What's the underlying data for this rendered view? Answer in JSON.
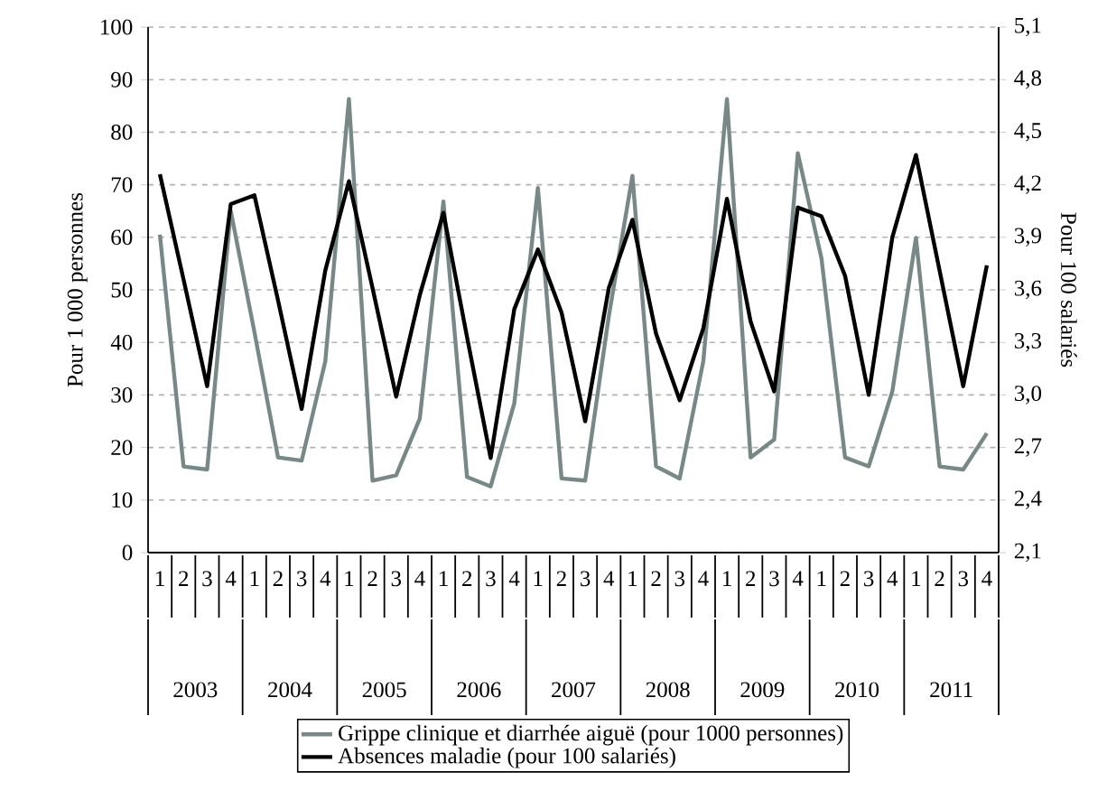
{
  "chart_data": {
    "type": "line",
    "categories": [
      "1",
      "2",
      "3",
      "4",
      "1",
      "2",
      "3",
      "4",
      "1",
      "2",
      "3",
      "4",
      "1",
      "2",
      "3",
      "4",
      "1",
      "2",
      "3",
      "4",
      "1",
      "2",
      "3",
      "4",
      "1",
      "2",
      "3",
      "4",
      "1",
      "2",
      "3",
      "4",
      "1",
      "2",
      "3",
      "4"
    ],
    "annotations": [
      "2003",
      "2004",
      "2005",
      "2006",
      "2007",
      "2008",
      "2009",
      "2010",
      "2011"
    ],
    "series": [
      {
        "name": "Grippe clinique et diarrhée aiguë (pour 1000 personnes)",
        "color": "#778887",
        "values": [
          60.5,
          16.4,
          15.8,
          65,
          42,
          18.1,
          17.5,
          36.4,
          86.3,
          13.7,
          14.7,
          25.5,
          66.8,
          14.4,
          12.6,
          28.4,
          69.4,
          14.1,
          13.7,
          45,
          71.7,
          16.4,
          14.1,
          36.4,
          86.3,
          18.1,
          21.5,
          76,
          56,
          18.1,
          16.4,
          30.7,
          59.9,
          16.4,
          15.8,
          22.7
        ]
      },
      {
        "name": "Absences maladie (pour 100 salariés)",
        "color": "#000000",
        "axis": "y2",
        "values": [
          4.26,
          3.66,
          3.05,
          4.09,
          4.14,
          3.54,
          2.92,
          3.71,
          4.22,
          3.61,
          2.99,
          3.57,
          4.04,
          3.33,
          2.64,
          3.49,
          3.83,
          3.47,
          2.85,
          3.61,
          4.0,
          3.35,
          2.97,
          3.38,
          4.12,
          3.42,
          3.02,
          4.07,
          4.02,
          3.68,
          3.0,
          3.9,
          4.37,
          3.71,
          3.05,
          3.74
        ]
      }
    ],
    "ylabel": "Pour 1 000 personnes",
    "y2label": "Pour 100 salariés",
    "ylim": [
      0,
      100
    ],
    "yticks": [
      0,
      10,
      20,
      30,
      40,
      50,
      60,
      70,
      80,
      90,
      100
    ],
    "y2lim": [
      2.1,
      5.1
    ],
    "y2ticks": [
      {
        "value": 2.1,
        "label": "2,1"
      },
      {
        "value": 2.4,
        "label": "2,4"
      },
      {
        "value": 2.7,
        "label": "2,7"
      },
      {
        "value": 3.0,
        "label": "3,0"
      },
      {
        "value": 3.3,
        "label": "3,3"
      },
      {
        "value": 3.6,
        "label": "3,6"
      },
      {
        "value": 3.9,
        "label": "3,9"
      },
      {
        "value": 4.2,
        "label": "4,2"
      },
      {
        "value": 4.5,
        "label": "4,5"
      },
      {
        "value": 4.8,
        "label": "4,8"
      },
      {
        "value": 5.1,
        "label": "5,1"
      }
    ],
    "grid": "y",
    "legend": "bottom"
  }
}
